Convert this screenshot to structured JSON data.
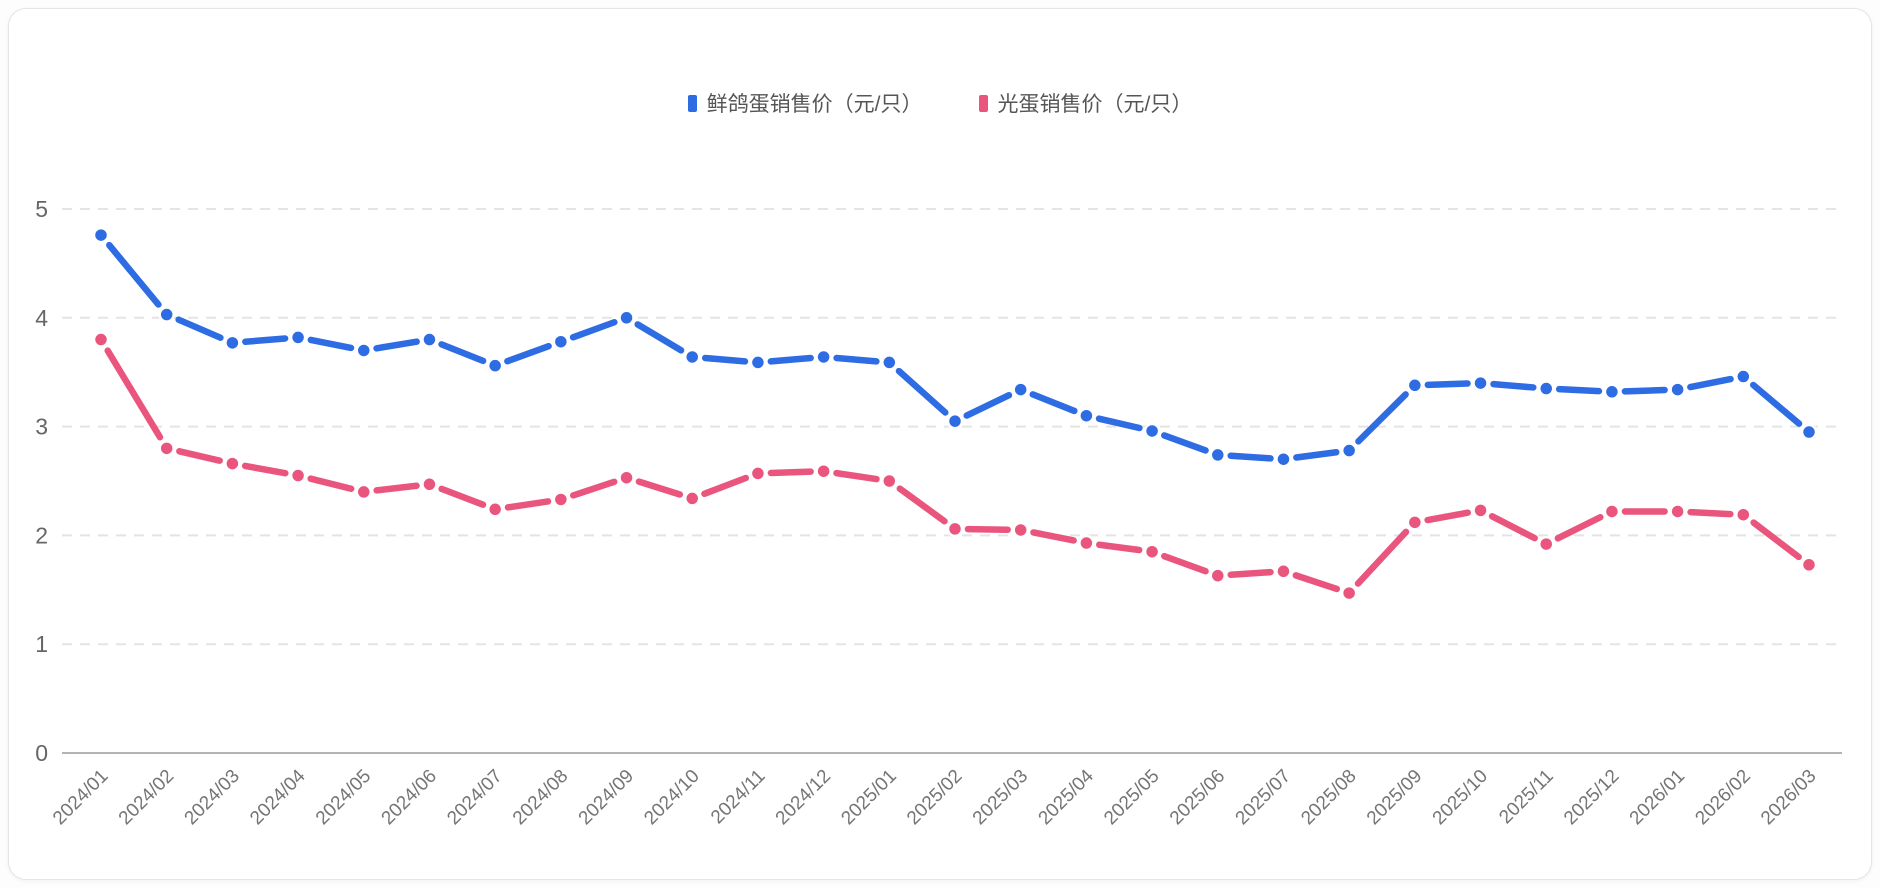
{
  "legend": {
    "items": [
      {
        "label": "鲜鸽蛋销售价（元/只）",
        "color": "#2d6ce3"
      },
      {
        "label": "光蛋销售价（元/只）",
        "color": "#e9557d"
      }
    ]
  },
  "chart_data": {
    "type": "line",
    "title": "",
    "xlabel": "",
    "ylabel": "",
    "categories": [
      "2024/01",
      "2024/02",
      "2024/03",
      "2024/04",
      "2024/05",
      "2024/06",
      "2024/07",
      "2024/08",
      "2024/09",
      "2024/10",
      "2024/11",
      "2024/12",
      "2025/01",
      "2025/02",
      "2025/03",
      "2025/04",
      "2025/05",
      "2025/06",
      "2025/07",
      "2025/08",
      "2025/09",
      "2025/10",
      "2025/11",
      "2025/12",
      "2026/01",
      "2026/02",
      "2026/03"
    ],
    "series": [
      {
        "name": "鲜鸽蛋销售价（元/只）",
        "color": "#2d6ce3",
        "values": [
          4.76,
          4.03,
          3.77,
          3.82,
          3.7,
          3.8,
          3.56,
          3.78,
          4.0,
          3.64,
          3.59,
          3.64,
          3.59,
          3.05,
          3.34,
          3.1,
          2.96,
          2.74,
          2.7,
          2.78,
          3.38,
          3.4,
          3.35,
          3.32,
          3.34,
          3.46,
          2.95
        ]
      },
      {
        "name": "光蛋销售价（元/只）",
        "color": "#e9557d",
        "values": [
          3.8,
          2.8,
          2.66,
          2.55,
          2.4,
          2.47,
          2.24,
          2.33,
          2.53,
          2.34,
          2.57,
          2.59,
          2.5,
          2.06,
          2.05,
          1.93,
          1.85,
          1.63,
          1.67,
          1.47,
          2.12,
          2.23,
          1.92,
          2.22,
          2.22,
          2.19,
          1.73
        ]
      }
    ],
    "ylim": [
      0,
      5
    ],
    "yticks": [
      0,
      1,
      2,
      3,
      4,
      5
    ],
    "grid": true,
    "gridline_style": "dashed",
    "line_style": "dashed-with-dots",
    "legend_position": "top-center",
    "x_tick_rotation": -45
  },
  "style_colors": {
    "y_tick_label": "#666666",
    "x_tick_label": "#757575",
    "gridline": "#e4e4e4",
    "axis_line": "#b3b3b3"
  }
}
